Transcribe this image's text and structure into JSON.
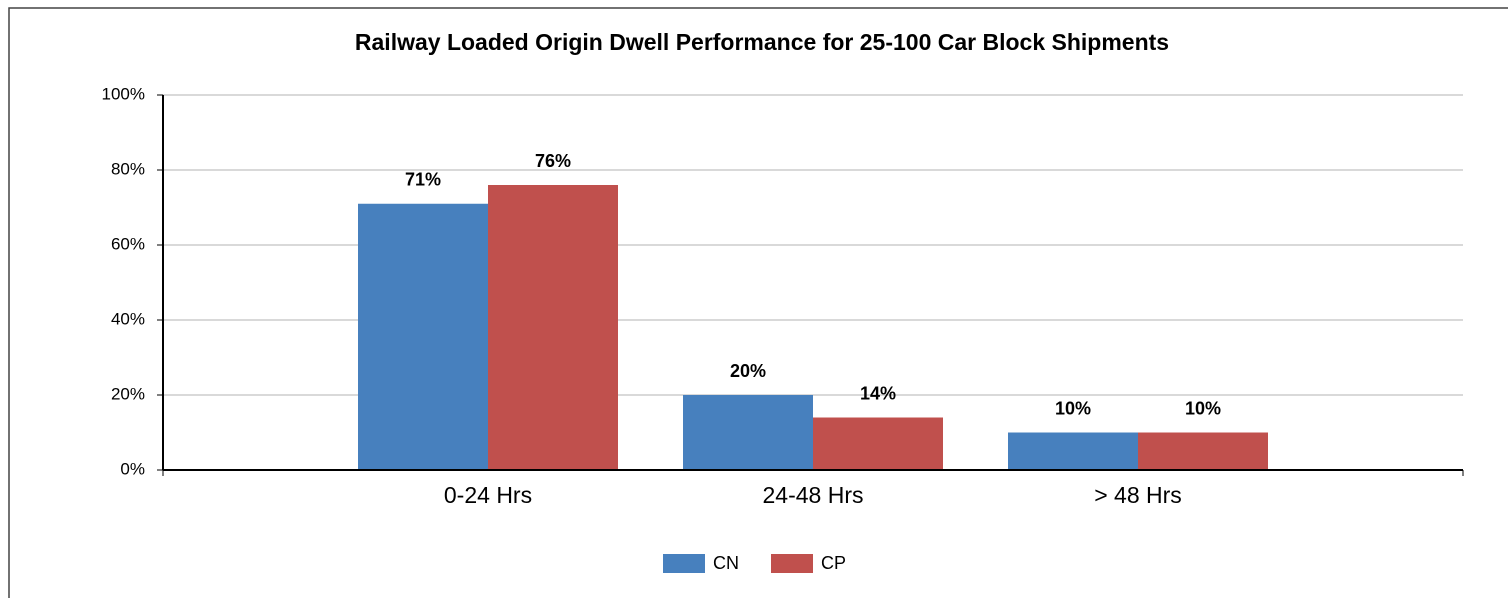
{
  "chart_data": {
    "type": "bar",
    "title": "Railway Loaded Origin Dwell Performance for 25-100 Car Block Shipments",
    "categories": [
      "0-24 Hrs",
      "24-48 Hrs",
      "> 48 Hrs"
    ],
    "series": [
      {
        "name": "CN",
        "color": "#4780be",
        "values": [
          71,
          20,
          10
        ],
        "value_labels": [
          "71%",
          "20%",
          "10%"
        ]
      },
      {
        "name": "CP",
        "color": "#c0504d",
        "values": [
          76,
          14,
          10
        ],
        "value_labels": [
          "76%",
          "14%",
          "10%"
        ]
      }
    ],
    "ylim": [
      0,
      100
    ],
    "yticks": [
      {
        "value": 0,
        "label": "0%"
      },
      {
        "value": 20,
        "label": "20%"
      },
      {
        "value": 40,
        "label": "40%"
      },
      {
        "value": 60,
        "label": "60%"
      },
      {
        "value": 80,
        "label": "80%"
      },
      {
        "value": 100,
        "label": "100%"
      }
    ],
    "grid": true,
    "legend": "bottom"
  }
}
